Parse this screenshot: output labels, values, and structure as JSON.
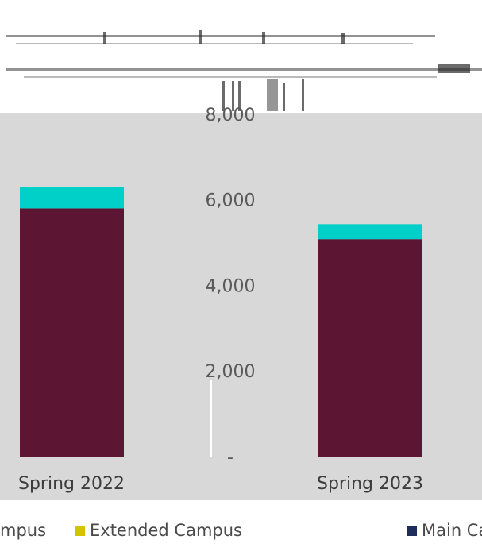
{
  "chart_data": {
    "type": "bar",
    "stacked": true,
    "title": "",
    "xlabel": "",
    "ylabel": "",
    "categories": [
      "Spring 2022",
      "Spring 2023"
    ],
    "series": [
      {
        "name": "Main Campus",
        "color": "#5c1533",
        "values": [
          5800,
          5080
        ]
      },
      {
        "name": "Extended Campus",
        "color": "#00d0c8",
        "values": [
          500,
          350
        ]
      }
    ],
    "y_ticks": [
      {
        "value": 8000,
        "label": "8,000"
      },
      {
        "value": 6000,
        "label": "6,000"
      },
      {
        "value": 4000,
        "label": "4,000"
      },
      {
        "value": 2000,
        "label": "2,000"
      },
      {
        "value": 0,
        "label": "-"
      }
    ],
    "ylim": [
      0,
      8000
    ],
    "grid": false,
    "legend": {
      "placement": "bottom",
      "items": [
        {
          "label": "mpus",
          "color": ""
        },
        {
          "label": "Extended Campus",
          "color": "#d4c300"
        },
        {
          "label": "Main Ca",
          "color": "#1f2d5a"
        }
      ]
    }
  }
}
